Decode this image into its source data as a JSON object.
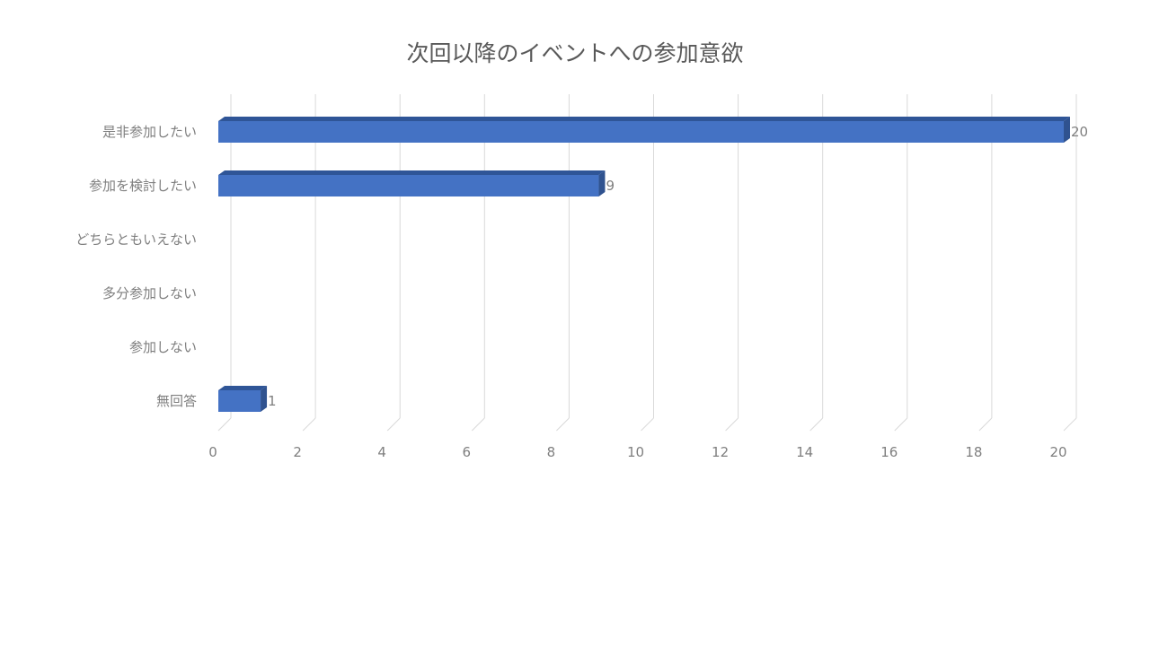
{
  "chart_data": {
    "type": "bar",
    "orientation": "horizontal",
    "title": "次回以降のイベントへの参加意欲",
    "categories": [
      "是非参加したい",
      "参加を検討したい",
      "どちらともいえない",
      "多分参加しない",
      "参加しない",
      "無回答"
    ],
    "values": [
      20,
      9,
      null,
      null,
      null,
      1
    ],
    "data_labels": [
      "20",
      "9",
      "",
      "",
      "",
      "1"
    ],
    "xlim": [
      0,
      20
    ],
    "x_ticks": [
      0,
      2,
      4,
      6,
      8,
      10,
      12,
      14,
      16,
      18,
      20
    ],
    "grid": true,
    "legend": "none",
    "style": "3d",
    "colors": {
      "bar_front": "#4472c4",
      "bar_top": "#2f5597",
      "bar_side": "#2f528f",
      "grid": "#d9d9d9",
      "text": "#7f7f7f",
      "title": "#595959"
    }
  }
}
